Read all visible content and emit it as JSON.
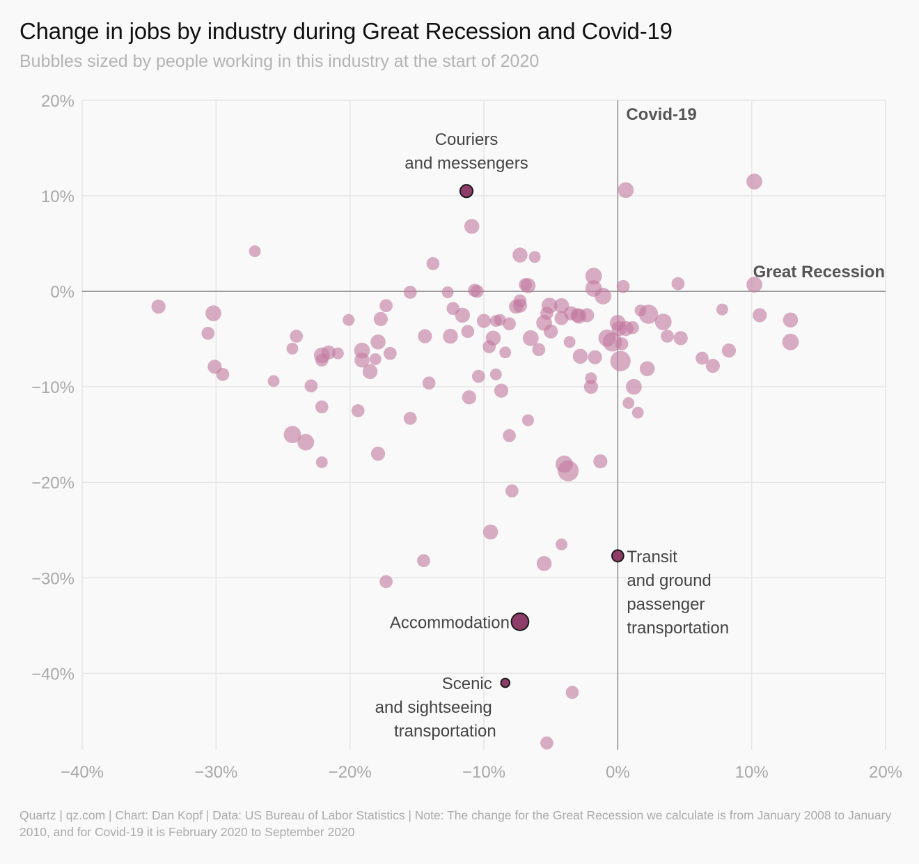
{
  "header": {
    "title": "Change in jobs by industry during Great Recession and Covid-19",
    "subtitle": "Bubbles sized by people working in this industry at the start of 2020"
  },
  "footer": {
    "source": "Quartz | qz.com | Chart: Dan Kopf | Data: US Bureau of Labor Statistics | Note: The change for the Great Recession we calculate is from January 2008 to January 2010, and for Covid-19 it is February 2020 to September 2020"
  },
  "colors": {
    "bubble": "#c27ba0",
    "highlight": "#8e3d68",
    "highlight_stroke": "#1a1a1a",
    "grid": "#e6e6e6",
    "zero_line": "#8c8c8c"
  },
  "chart_data": {
    "type": "scatter",
    "xlabel": "Great Recession",
    "ylabel": "Covid-19",
    "xlim": [
      -40,
      20
    ],
    "ylim": [
      -48,
      20
    ],
    "x_ticks": [
      -40,
      -30,
      -20,
      -10,
      0,
      10,
      20
    ],
    "x_tick_labels": [
      "−40%",
      "−30%",
      "−20%",
      "−10%",
      "0%",
      "10%",
      "20%"
    ],
    "y_ticks": [
      20,
      10,
      0,
      -10,
      -20,
      -30,
      -40
    ],
    "y_tick_labels": [
      "20%",
      "10%",
      "0%",
      "−10%",
      "−20%",
      "−30%",
      "−40%"
    ],
    "grid": true,
    "highlighted": [
      {
        "label_lines": [
          "Couriers",
          "and messengers"
        ],
        "x": -11.3,
        "y": 10.5,
        "size": 4
      },
      {
        "label_lines": [
          "Transit",
          "and ground",
          "passenger",
          "transportation"
        ],
        "x": 0.0,
        "y": -27.7,
        "size": 3
      },
      {
        "label_lines": [
          "Accommodation"
        ],
        "x": -7.3,
        "y": -34.6,
        "size": 10
      },
      {
        "label_lines": [
          "Scenic",
          "and sightseeing",
          "transportation"
        ],
        "x": -8.4,
        "y": -41.0,
        "size": 1
      }
    ],
    "points": [
      {
        "x": -34.3,
        "y": -1.6,
        "size": 4
      },
      {
        "x": -30.2,
        "y": -2.3,
        "size": 6
      },
      {
        "x": -30.6,
        "y": -4.4,
        "size": 3
      },
      {
        "x": -30.1,
        "y": -7.9,
        "size": 4
      },
      {
        "x": -29.5,
        "y": -8.7,
        "size": 3
      },
      {
        "x": -27.1,
        "y": 4.2,
        "size": 2
      },
      {
        "x": -25.7,
        "y": -9.4,
        "size": 2
      },
      {
        "x": -24.3,
        "y": -6.0,
        "size": 2
      },
      {
        "x": -24.0,
        "y": -4.7,
        "size": 3
      },
      {
        "x": -24.3,
        "y": -15.0,
        "size": 8
      },
      {
        "x": -23.3,
        "y": -15.8,
        "size": 7
      },
      {
        "x": -22.9,
        "y": -9.9,
        "size": 3
      },
      {
        "x": -22.1,
        "y": -6.7,
        "size": 6
      },
      {
        "x": -22.1,
        "y": -7.2,
        "size": 3
      },
      {
        "x": -21.6,
        "y": -6.4,
        "size": 4
      },
      {
        "x": -20.9,
        "y": -6.5,
        "size": 2
      },
      {
        "x": -22.1,
        "y": -12.1,
        "size": 3
      },
      {
        "x": -22.1,
        "y": -17.9,
        "size": 2
      },
      {
        "x": -20.1,
        "y": -3.0,
        "size": 2
      },
      {
        "x": -19.4,
        "y": -12.5,
        "size": 3
      },
      {
        "x": -19.1,
        "y": -6.2,
        "size": 6
      },
      {
        "x": -19.1,
        "y": -7.2,
        "size": 5
      },
      {
        "x": -18.5,
        "y": -8.4,
        "size": 5
      },
      {
        "x": -18.1,
        "y": -7.1,
        "size": 2
      },
      {
        "x": -17.9,
        "y": -5.3,
        "size": 5
      },
      {
        "x": -17.7,
        "y": -2.9,
        "size": 4
      },
      {
        "x": -17.3,
        "y": -1.5,
        "size": 3
      },
      {
        "x": -17.0,
        "y": -6.5,
        "size": 3
      },
      {
        "x": -17.9,
        "y": -17.0,
        "size": 4
      },
      {
        "x": -17.3,
        "y": -30.4,
        "size": 3
      },
      {
        "x": -15.5,
        "y": -0.1,
        "size": 3
      },
      {
        "x": -15.5,
        "y": -13.3,
        "size": 3
      },
      {
        "x": -14.5,
        "y": -28.2,
        "size": 3
      },
      {
        "x": -14.4,
        "y": -4.7,
        "size": 4
      },
      {
        "x": -14.1,
        "y": -9.6,
        "size": 3
      },
      {
        "x": -13.8,
        "y": 2.9,
        "size": 3
      },
      {
        "x": -12.7,
        "y": -0.1,
        "size": 2
      },
      {
        "x": -12.3,
        "y": -1.8,
        "size": 3
      },
      {
        "x": -12.5,
        "y": -4.7,
        "size": 5
      },
      {
        "x": -11.6,
        "y": -2.5,
        "size": 5
      },
      {
        "x": -11.2,
        "y": -4.2,
        "size": 3
      },
      {
        "x": -11.1,
        "y": -11.1,
        "size": 4
      },
      {
        "x": -10.9,
        "y": 6.8,
        "size": 5
      },
      {
        "x": -10.7,
        "y": 0.1,
        "size": 3
      },
      {
        "x": -10.5,
        "y": 0.0,
        "size": 3
      },
      {
        "x": -10.4,
        "y": -8.9,
        "size": 3
      },
      {
        "x": -10.0,
        "y": -3.1,
        "size": 4
      },
      {
        "x": -9.6,
        "y": -5.8,
        "size": 3
      },
      {
        "x": -9.3,
        "y": -4.9,
        "size": 5
      },
      {
        "x": -9.1,
        "y": -3.1,
        "size": 2
      },
      {
        "x": -8.8,
        "y": -3.0,
        "size": 2
      },
      {
        "x": -9.1,
        "y": -8.7,
        "size": 2
      },
      {
        "x": -8.7,
        "y": -10.4,
        "size": 4
      },
      {
        "x": -8.4,
        "y": -6.4,
        "size": 2
      },
      {
        "x": -9.5,
        "y": -25.2,
        "size": 5
      },
      {
        "x": -8.1,
        "y": -3.4,
        "size": 3
      },
      {
        "x": -8.1,
        "y": -15.1,
        "size": 3
      },
      {
        "x": -7.9,
        "y": -20.9,
        "size": 3
      },
      {
        "x": -7.6,
        "y": -1.6,
        "size": 4
      },
      {
        "x": -7.3,
        "y": 3.8,
        "size": 5
      },
      {
        "x": -7.3,
        "y": -1.5,
        "size": 4
      },
      {
        "x": -7.3,
        "y": -1.0,
        "size": 3
      },
      {
        "x": -6.9,
        "y": 0.7,
        "size": 3
      },
      {
        "x": -6.7,
        "y": 0.6,
        "size": 5
      },
      {
        "x": -6.7,
        "y": -13.5,
        "size": 2
      },
      {
        "x": -6.5,
        "y": -4.9,
        "size": 6
      },
      {
        "x": -6.2,
        "y": 3.6,
        "size": 2
      },
      {
        "x": -5.9,
        "y": -6.1,
        "size": 3
      },
      {
        "x": -5.5,
        "y": -3.3,
        "size": 6
      },
      {
        "x": -5.3,
        "y": -2.3,
        "size": 3
      },
      {
        "x": -5.1,
        "y": -1.5,
        "size": 6
      },
      {
        "x": -5.0,
        "y": -4.2,
        "size": 4
      },
      {
        "x": -5.5,
        "y": -28.5,
        "size": 5
      },
      {
        "x": -5.3,
        "y": -47.3,
        "size": 3
      },
      {
        "x": -4.2,
        "y": -1.5,
        "size": 5
      },
      {
        "x": -4.2,
        "y": -2.8,
        "size": 4
      },
      {
        "x": -4.2,
        "y": -26.5,
        "size": 2
      },
      {
        "x": -4.0,
        "y": -18.1,
        "size": 8
      },
      {
        "x": -3.7,
        "y": -18.8,
        "size": 14
      },
      {
        "x": -3.6,
        "y": -5.3,
        "size": 2
      },
      {
        "x": -3.5,
        "y": -2.3,
        "size": 4
      },
      {
        "x": -3.4,
        "y": -42.0,
        "size": 3
      },
      {
        "x": -3.0,
        "y": -2.5,
        "size": 4
      },
      {
        "x": -2.9,
        "y": -2.6,
        "size": 5
      },
      {
        "x": -2.8,
        "y": -6.8,
        "size": 5
      },
      {
        "x": -2.3,
        "y": -2.5,
        "size": 4
      },
      {
        "x": -2.0,
        "y": -9.1,
        "size": 2
      },
      {
        "x": -2.0,
        "y": -10.0,
        "size": 4
      },
      {
        "x": -1.8,
        "y": 1.6,
        "size": 7
      },
      {
        "x": -1.8,
        "y": 0.3,
        "size": 7
      },
      {
        "x": -1.7,
        "y": -6.9,
        "size": 4
      },
      {
        "x": -1.3,
        "y": -17.8,
        "size": 4
      },
      {
        "x": -1.1,
        "y": -0.5,
        "size": 7
      },
      {
        "x": -0.8,
        "y": -4.9,
        "size": 8
      },
      {
        "x": -0.4,
        "y": -5.3,
        "size": 11
      },
      {
        "x": 0.0,
        "y": -3.3,
        "size": 6
      },
      {
        "x": 0.1,
        "y": -3.9,
        "size": 5
      },
      {
        "x": 0.2,
        "y": -7.3,
        "size": 13
      },
      {
        "x": 0.3,
        "y": -5.5,
        "size": 3
      },
      {
        "x": 0.4,
        "y": 0.5,
        "size": 3
      },
      {
        "x": 0.6,
        "y": -3.9,
        "size": 5
      },
      {
        "x": 0.6,
        "y": 10.6,
        "size": 6
      },
      {
        "x": 0.8,
        "y": -11.7,
        "size": 2
      },
      {
        "x": 1.1,
        "y": -3.8,
        "size": 3
      },
      {
        "x": 1.2,
        "y": -10.0,
        "size": 6
      },
      {
        "x": 1.5,
        "y": -12.7,
        "size": 2
      },
      {
        "x": 1.7,
        "y": -2.0,
        "size": 2
      },
      {
        "x": 2.2,
        "y": -8.1,
        "size": 5
      },
      {
        "x": 2.3,
        "y": -2.4,
        "size": 11
      },
      {
        "x": 3.4,
        "y": -3.2,
        "size": 7
      },
      {
        "x": 3.7,
        "y": -4.7,
        "size": 3
      },
      {
        "x": 4.5,
        "y": 0.8,
        "size": 3
      },
      {
        "x": 4.7,
        "y": -4.9,
        "size": 4
      },
      {
        "x": 6.3,
        "y": -7.0,
        "size": 3
      },
      {
        "x": 7.1,
        "y": -7.8,
        "size": 4
      },
      {
        "x": 7.8,
        "y": -1.9,
        "size": 2
      },
      {
        "x": 8.3,
        "y": -6.2,
        "size": 4
      },
      {
        "x": 10.2,
        "y": 11.5,
        "size": 6
      },
      {
        "x": 10.2,
        "y": 0.7,
        "size": 6
      },
      {
        "x": 10.6,
        "y": -2.5,
        "size": 4
      },
      {
        "x": 12.9,
        "y": -3.0,
        "size": 5
      },
      {
        "x": 12.9,
        "y": -5.3,
        "size": 7
      }
    ]
  }
}
